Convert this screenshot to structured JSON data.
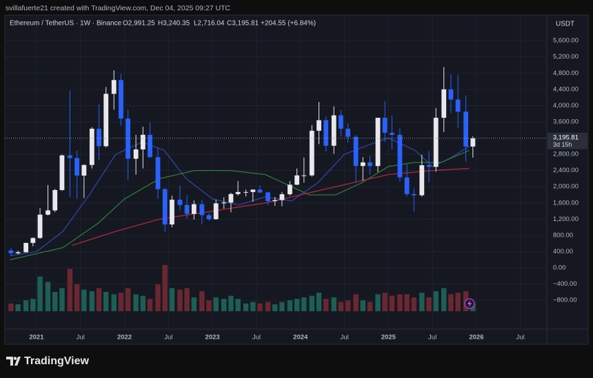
{
  "credit": "svillafuerte21 created with TradingView.com, Dec 04, 2025 09:27 UTC",
  "branding": "TradingView",
  "chart_data": {
    "type": "candlestick",
    "legend": {
      "symbol": "Ethereum / TetherUS · 1W · Binance",
      "ohlc": [
        {
          "value": 2991.25,
          "label": "O2,991.25"
        },
        {
          "value": 3240.35,
          "label": "H3,240.35"
        },
        {
          "value": 2716.04,
          "label": "L2,716.04"
        },
        {
          "value": 3195.81,
          "label": "C3,195.81"
        }
      ],
      "change": {
        "value": 204.55,
        "label": "+204.55 (+6.84%)"
      }
    },
    "currency": "USDT",
    "last_price": {
      "value": 3195.81,
      "label": "3,195.81"
    },
    "countdown": "3d 15h",
    "x": [
      2020.71,
      2020.79,
      2020.88,
      2020.96,
      2021.04,
      2021.13,
      2021.21,
      2021.29,
      2021.38,
      2021.46,
      2021.54,
      2021.63,
      2021.71,
      2021.79,
      2021.88,
      2021.96,
      2022.04,
      2022.13,
      2022.21,
      2022.29,
      2022.38,
      2022.46,
      2022.54,
      2022.63,
      2022.71,
      2022.79,
      2022.88,
      2022.96,
      2023.04,
      2023.13,
      2023.21,
      2023.29,
      2023.38,
      2023.46,
      2023.54,
      2023.63,
      2023.71,
      2023.79,
      2023.88,
      2023.96,
      2024.04,
      2024.13,
      2024.21,
      2024.29,
      2024.38,
      2024.46,
      2024.54,
      2024.63,
      2024.71,
      2024.79,
      2024.88,
      2024.96,
      2025.04,
      2025.13,
      2025.21,
      2025.29,
      2025.38,
      2025.46,
      2025.54,
      2025.63,
      2025.71,
      2025.79,
      2025.88,
      2025.96
    ],
    "open": [
      430,
      360,
      386,
      615,
      737,
      1312,
      1417,
      1918,
      2773,
      2707,
      2275,
      2536,
      3430,
      3000,
      4290,
      4630,
      3680,
      2690,
      2920,
      3280,
      2730,
      1940,
      1070,
      1680,
      1550,
      1330,
      1570,
      1300,
      1200,
      1590,
      1610,
      1820,
      1870,
      1870,
      1930,
      1860,
      1645,
      1670,
      1815,
      2050,
      2280,
      2280,
      3380,
      3640,
      3010,
      3760,
      3430,
      3230,
      2510,
      2600,
      2510,
      3700,
      3330,
      3280,
      2230,
      1820,
      1790,
      2530,
      2490,
      3700,
      4400,
      4150,
      3850,
      2991.25
    ],
    "high": [
      490,
      420,
      620,
      750,
      1475,
      2040,
      1945,
      2795,
      4370,
      2890,
      2550,
      3470,
      4030,
      4460,
      4870,
      4780,
      3900,
      3280,
      3480,
      3580,
      2970,
      1970,
      1780,
      2030,
      1790,
      1660,
      1680,
      1350,
      1680,
      1740,
      1850,
      2140,
      1930,
      1930,
      2030,
      1880,
      1750,
      1870,
      2140,
      2450,
      2720,
      3520,
      4090,
      3730,
      3980,
      3890,
      3560,
      3270,
      2730,
      2770,
      3680,
      4110,
      3750,
      3440,
      2550,
      1960,
      2790,
      2880,
      3940,
      4950,
      4770,
      4760,
      4250,
      3240.35
    ],
    "low": [
      310,
      335,
      370,
      530,
      715,
      1290,
      1375,
      1900,
      1740,
      1700,
      1720,
      2450,
      2650,
      2970,
      3900,
      3500,
      2160,
      2300,
      2450,
      2720,
      1700,
      880,
      1000,
      1420,
      1220,
      1190,
      1070,
      1160,
      1190,
      1460,
      1370,
      1780,
      1760,
      1630,
      1840,
      1550,
      1530,
      1520,
      1780,
      2040,
      2100,
      2250,
      3050,
      2870,
      2810,
      3240,
      3080,
      2110,
      2150,
      2300,
      2360,
      3100,
      2920,
      2120,
      1760,
      1390,
      1760,
      2110,
      2370,
      3350,
      3820,
      3440,
      2620,
      2716.04
    ],
    "close": [
      360,
      386,
      615,
      737,
      1312,
      1417,
      1918,
      2773,
      2707,
      2275,
      2536,
      3430,
      3000,
      4290,
      4630,
      3680,
      2690,
      2920,
      3280,
      2730,
      1940,
      1070,
      1680,
      1550,
      1330,
      1570,
      1300,
      1200,
      1590,
      1610,
      1820,
      1870,
      1870,
      1930,
      1860,
      1645,
      1670,
      1815,
      2050,
      2280,
      2280,
      3380,
      3640,
      3010,
      3760,
      3430,
      3230,
      2510,
      2600,
      2510,
      3700,
      3330,
      3280,
      2230,
      1820,
      1790,
      2530,
      2490,
      3700,
      4400,
      4150,
      3850,
      2991.25,
      3195.81
    ],
    "volume": [
      10,
      9,
      14,
      16,
      45,
      38,
      25,
      30,
      55,
      35,
      28,
      26,
      30,
      25,
      22,
      24,
      30,
      22,
      20,
      16,
      35,
      60,
      30,
      28,
      30,
      18,
      26,
      14,
      18,
      16,
      20,
      16,
      10,
      12,
      10,
      12,
      9,
      12,
      14,
      16,
      18,
      20,
      24,
      16,
      18,
      12,
      14,
      22,
      14,
      12,
      22,
      24,
      20,
      22,
      22,
      18,
      24,
      18,
      26,
      30,
      22,
      24,
      26,
      10
    ],
    "vlim": [
      0,
      100
    ],
    "up_color": "#e8e8ec",
    "down_color": "#2962ff",
    "volume_up_color": "#1e6b5e",
    "volume_down_color": "#7a2a34",
    "moving_averages": [
      {
        "color": "#2e45a8",
        "x": [
          2020.7,
          2021.0,
          2021.3,
          2021.6,
          2021.9,
          2022.2,
          2022.45,
          2022.7,
          2023.0,
          2023.3,
          2023.6,
          2023.9,
          2024.2,
          2024.5,
          2024.8,
          2025.0,
          2025.3,
          2025.5,
          2025.7,
          2025.92
        ],
        "values": [
          300,
          400,
          900,
          1800,
          2800,
          3100,
          2900,
          2200,
          1700,
          1550,
          1750,
          1650,
          2100,
          2800,
          3050,
          3200,
          2900,
          2500,
          2700,
          3000
        ]
      },
      {
        "color": "#2f7a3a",
        "x": [
          2020.7,
          2021.3,
          2021.7,
          2022.0,
          2022.4,
          2022.8,
          2023.2,
          2023.6,
          2023.9,
          2024.1,
          2024.4,
          2024.7,
          2025.0,
          2025.3,
          2025.6,
          2025.92
        ],
        "values": [
          200,
          500,
          1100,
          1700,
          2200,
          2400,
          2400,
          2300,
          2000,
          1800,
          1800,
          2100,
          2500,
          2600,
          2600,
          2900
        ]
      },
      {
        "color": "#b2283a",
        "x": [
          2021.4,
          2021.9,
          2022.4,
          2023.0,
          2023.6,
          2024.0,
          2024.6,
          2025.0,
          2025.5,
          2025.92
        ],
        "values": [
          550,
          900,
          1200,
          1400,
          1600,
          1800,
          2100,
          2300,
          2400,
          2450
        ]
      }
    ],
    "xlim": [
      2020.64,
      2026.8
    ],
    "xticks": [
      2021,
      {
        "value": 2021.5,
        "label": "Jul"
      },
      2022,
      {
        "value": 2022.5,
        "label": "Jul"
      },
      2023,
      {
        "value": 2023.5,
        "label": "Jul"
      },
      2024,
      {
        "value": 2024.5,
        "label": "Jul"
      },
      2025,
      {
        "value": 2025.5,
        "label": "Jul"
      },
      2026,
      {
        "value": 2026.5,
        "label": "Jul"
      }
    ],
    "ylim": [
      -1510,
      6230
    ],
    "yticks": [
      {
        "value": -800,
        "label": "−800.00"
      },
      {
        "value": -400,
        "label": "−400.00"
      },
      {
        "value": 0,
        "label": "0.00"
      },
      {
        "value": 400,
        "label": "400.00"
      },
      {
        "value": 800,
        "label": "800.00"
      },
      {
        "value": 1200,
        "label": "1,200.00"
      },
      {
        "value": 1600,
        "label": "1,600.00"
      },
      {
        "value": 2000,
        "label": "2,000.00"
      },
      {
        "value": 2400,
        "label": "2,400.00"
      },
      {
        "value": 2800,
        "label": "2,800.00"
      },
      {
        "value": 3600,
        "label": "3,600.00"
      },
      {
        "value": 4000,
        "label": "4,000.00"
      },
      {
        "value": 4400,
        "label": "4,400.00"
      },
      {
        "value": 4800,
        "label": "4,800.00"
      },
      {
        "value": 5200,
        "label": "5,200.00"
      },
      {
        "value": 5600,
        "label": "5,600.00"
      }
    ],
    "grid": true
  }
}
